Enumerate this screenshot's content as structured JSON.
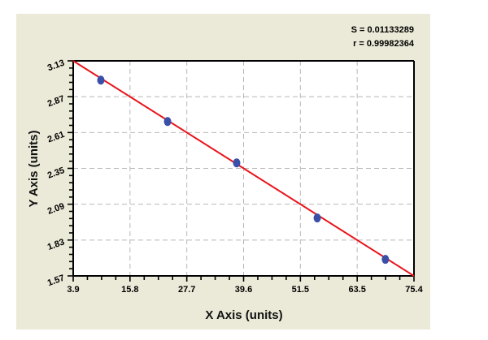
{
  "chart_data": {
    "type": "scatter",
    "title": "",
    "xlabel": "X Axis (units)",
    "ylabel": "Y Axis (units)",
    "xlim": [
      3.9,
      75.4
    ],
    "ylim": [
      1.57,
      3.13
    ],
    "x_ticks": [
      "3.9",
      "15.8",
      "27.7",
      "39.6",
      "51.5",
      "63.5",
      "75.4"
    ],
    "y_ticks": [
      "3.13",
      "2.87",
      "2.61",
      "2.35",
      "2.09",
      "1.83",
      "1.57"
    ],
    "grid": true,
    "legend": null,
    "annotations": [
      "S = 0.01133289",
      "r = 0.99982364"
    ],
    "series": [
      {
        "name": "data",
        "kind": "points",
        "color": "#3a4fa8",
        "x": [
          9.7,
          23.7,
          38.2,
          55.1,
          69.4
        ],
        "y": [
          2.99,
          2.69,
          2.39,
          1.99,
          1.69
        ]
      },
      {
        "name": "fit",
        "kind": "line",
        "color": "#e8141b",
        "x": [
          3.9,
          75.4
        ],
        "y": [
          3.13,
          1.57
        ]
      }
    ]
  },
  "stats": {
    "s_label": "S = 0.01133289",
    "r_label": "r = 0.99982364"
  },
  "axes": {
    "x_title": "X Axis (units)",
    "y_title": "Y Axis (units)"
  },
  "colors": {
    "panel": "#ebe9d7",
    "fit_line": "#e8141b",
    "points": "#3a4fa8"
  }
}
